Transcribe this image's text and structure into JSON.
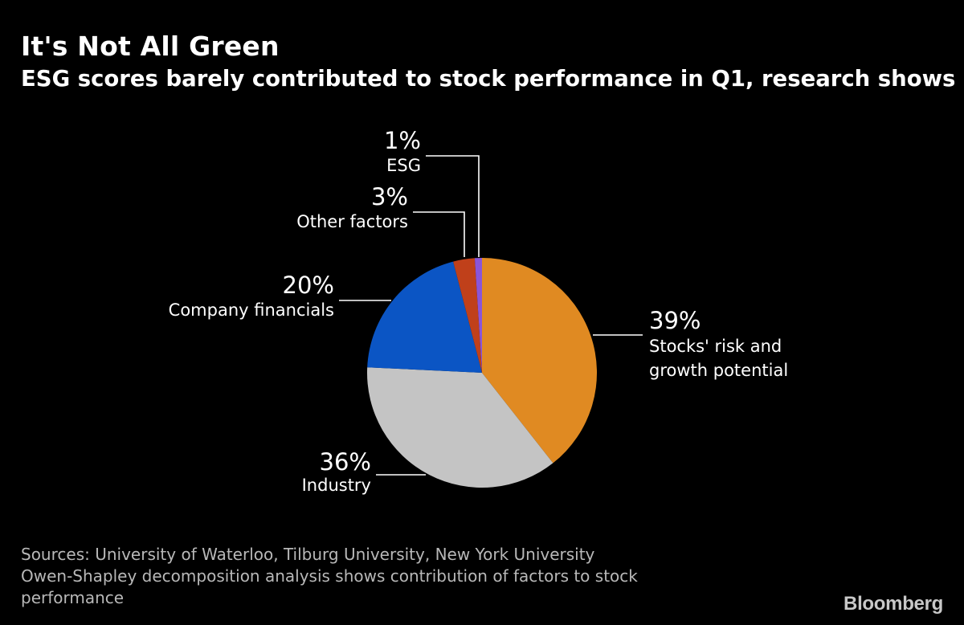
{
  "header": {
    "title": "It's Not All Green",
    "subtitle": "ESG scores barely contributed to stock performance in Q1, research shows"
  },
  "chart_data": {
    "type": "pie",
    "title": "It's Not All Green",
    "subtitle": "ESG scores barely contributed to stock performance in Q1, research shows",
    "slices": [
      {
        "label": "Stocks' risk and growth potential",
        "label_lines": [
          "Stocks' risk and",
          "growth potential"
        ],
        "value": 39,
        "value_label": "39%",
        "color": "#e08a22"
      },
      {
        "label": "Industry",
        "label_lines": [
          "Industry"
        ],
        "value": 36,
        "value_label": "36%",
        "color": "#c4c4c4"
      },
      {
        "label": "Company financials",
        "label_lines": [
          "Company financials"
        ],
        "value": 20,
        "value_label": "20%",
        "color": "#0b55c4"
      },
      {
        "label": "Other factors",
        "label_lines": [
          "Other factors"
        ],
        "value": 3,
        "value_label": "3%",
        "color": "#c0401a"
      },
      {
        "label": "ESG",
        "label_lines": [
          "ESG"
        ],
        "value": 1,
        "value_label": "1%",
        "color": "#8a55d8"
      }
    ],
    "direction": "clockwise from top"
  },
  "footer": {
    "sources": "Sources: University of Waterloo, Tilburg University, New York University",
    "note_line1": "Owen-Shapley decomposition analysis shows contribution of factors to stock",
    "note_line2": "performance",
    "brand": "Bloomberg"
  }
}
